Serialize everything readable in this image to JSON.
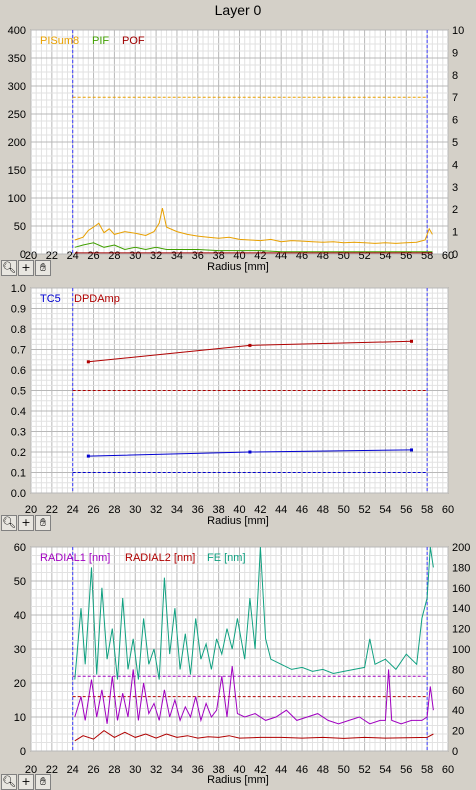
{
  "window_title": "Layer 0",
  "toolbar": {
    "zoom_icon": "magnifier-icon",
    "cross_icon": "crosshair-icon",
    "pan_icon": "hand-icon"
  },
  "chart_data": [
    {
      "type": "line",
      "xlabel": "Radius [mm]",
      "xlim": [
        20,
        60
      ],
      "x_ticks": [
        20,
        22,
        24,
        26,
        28,
        30,
        32,
        34,
        36,
        38,
        40,
        42,
        44,
        46,
        48,
        50,
        52,
        54,
        56,
        58,
        60
      ],
      "ylim": [
        0,
        400
      ],
      "y_ticks": [
        0,
        50,
        100,
        150,
        200,
        250,
        300,
        350,
        400
      ],
      "y2lim": [
        0,
        10
      ],
      "y2_ticks": [
        0,
        1,
        2,
        3,
        4,
        5,
        6,
        7,
        8,
        9,
        10
      ],
      "grid": true,
      "legend_position": "top-left",
      "markers_x": [
        24,
        58
      ],
      "series": [
        {
          "name": "PISum8",
          "color": "#e8a000",
          "axis": "left",
          "x": [
            24.2,
            25,
            25.5,
            26,
            26.5,
            27,
            27.5,
            28,
            29,
            30,
            31,
            31.8,
            32.3,
            32.6,
            33,
            34,
            35,
            36,
            37,
            38,
            39,
            40,
            41,
            42,
            43,
            44,
            45,
            46,
            47,
            48,
            49,
            50,
            51,
            52,
            53,
            54,
            55,
            56,
            57,
            57.8,
            58.2,
            58.5
          ],
          "values": [
            25,
            30,
            42,
            48,
            55,
            38,
            45,
            35,
            40,
            37,
            33,
            40,
            55,
            82,
            48,
            40,
            35,
            32,
            30,
            28,
            30,
            26,
            25,
            24,
            26,
            22,
            24,
            23,
            22,
            21,
            22,
            20,
            21,
            20,
            19,
            20,
            19,
            20,
            21,
            25,
            45,
            35
          ]
        },
        {
          "name": "PIF",
          "color": "#40a000",
          "axis": "right",
          "x": [
            24.2,
            25,
            26,
            27,
            28,
            29,
            30,
            31,
            32,
            33,
            34,
            36,
            38,
            40,
            42,
            44,
            46,
            48,
            50,
            52,
            54,
            56,
            58.5
          ],
          "values": [
            0.3,
            0.4,
            0.5,
            0.3,
            0.4,
            0.2,
            0.3,
            0.2,
            0.3,
            0.2,
            0.2,
            0.2,
            0.15,
            0.15,
            0.15,
            0.1,
            0.1,
            0.1,
            0.1,
            0.1,
            0.1,
            0.1,
            0.1
          ]
        },
        {
          "name": "POF",
          "color": "#a00000",
          "axis": "right",
          "x": [
            24.2,
            58.5
          ],
          "values": [
            0.05,
            0.05
          ]
        }
      ],
      "threshold_lines": [
        {
          "value": 7,
          "axis": "right",
          "color": "#e8a000"
        }
      ]
    },
    {
      "type": "line",
      "xlabel": "Radius [mm]",
      "xlim": [
        20,
        60
      ],
      "x_ticks": [
        20,
        22,
        24,
        26,
        28,
        30,
        32,
        34,
        36,
        38,
        40,
        42,
        44,
        46,
        48,
        50,
        52,
        54,
        56,
        58,
        60
      ],
      "ylim": [
        0,
        1
      ],
      "y_ticks": [
        0,
        0.1,
        0.2,
        0.3,
        0.4,
        0.5,
        0.6,
        0.7,
        0.8,
        0.9,
        1.0
      ],
      "grid": true,
      "legend_position": "top-left",
      "markers_x": [
        24,
        58
      ],
      "series": [
        {
          "name": "TC5",
          "color": "#0000d0",
          "axis": "left",
          "x": [
            25.5,
            41,
            56.5
          ],
          "values": [
            0.18,
            0.2,
            0.21
          ]
        },
        {
          "name": "DPDAmp",
          "color": "#b00000",
          "axis": "left",
          "x": [
            25.5,
            41,
            56.5
          ],
          "values": [
            0.64,
            0.72,
            0.74
          ]
        }
      ],
      "threshold_lines": [
        {
          "value": 0.1,
          "axis": "left",
          "color": "#0000d0"
        },
        {
          "value": 0.5,
          "axis": "left",
          "color": "#b00000"
        }
      ]
    },
    {
      "type": "line",
      "xlabel": "Radius [mm]",
      "xlim": [
        20,
        60
      ],
      "x_ticks": [
        20,
        22,
        24,
        26,
        28,
        30,
        32,
        34,
        36,
        38,
        40,
        42,
        44,
        46,
        48,
        50,
        52,
        54,
        56,
        58,
        60
      ],
      "ylim": [
        0,
        60
      ],
      "y_ticks": [
        0,
        10,
        20,
        30,
        40,
        50,
        60
      ],
      "y2lim": [
        0,
        200
      ],
      "y2_ticks": [
        0,
        20,
        40,
        60,
        80,
        100,
        120,
        140,
        160,
        180,
        200
      ],
      "grid": true,
      "legend_position": "top-left",
      "markers_x": [
        24,
        58
      ],
      "series": [
        {
          "name": "RADIAL1 [nm]",
          "color": "#a000c0",
          "axis": "left",
          "x": [
            24.2,
            24.8,
            25.2,
            25.8,
            26.3,
            26.8,
            27.3,
            27.8,
            28.3,
            28.8,
            29.3,
            29.8,
            30.3,
            30.8,
            31.3,
            31.8,
            32.3,
            32.8,
            33.3,
            33.8,
            34.3,
            34.8,
            35.3,
            35.8,
            36.3,
            36.8,
            37.3,
            37.8,
            38.3,
            38.8,
            39.3,
            39.8,
            40.5,
            41.5,
            42.5,
            43.5,
            44.5,
            45.5,
            46.5,
            47.5,
            48.5,
            49.5,
            50.5,
            51.5,
            52.5,
            53.5,
            54,
            54.3,
            54.6,
            55.5,
            56.5,
            57.5,
            58,
            58.3,
            58.6
          ],
          "values": [
            10,
            16,
            9,
            21,
            10,
            18,
            8,
            22,
            9,
            17,
            10,
            24,
            9,
            20,
            11,
            14,
            9,
            18,
            10,
            15,
            9,
            13,
            10,
            16,
            9,
            14,
            10,
            12,
            22,
            10,
            25,
            11,
            10,
            11,
            9,
            10,
            12,
            9,
            10,
            11,
            9,
            8,
            9,
            10,
            8,
            9,
            9,
            24,
            9,
            8,
            9,
            9,
            10,
            19,
            12
          ]
        },
        {
          "name": "RADIAL2 [nm]",
          "color": "#b00000",
          "axis": "left",
          "x": [
            24.2,
            25,
            26,
            27,
            28,
            29,
            30,
            31,
            32,
            33,
            34,
            35,
            36,
            37,
            38,
            39,
            40,
            42,
            44,
            46,
            48,
            50,
            52,
            54,
            56,
            58,
            58.6
          ],
          "values": [
            3,
            4.5,
            3.5,
            6,
            4,
            5.5,
            4,
            5,
            3.8,
            5,
            4,
            4.5,
            3.8,
            4.2,
            4,
            4.5,
            3.8,
            4,
            4,
            3.8,
            4,
            3.7,
            4,
            3.8,
            3.9,
            4,
            5
          ]
        },
        {
          "name": "FE [nm]",
          "color": "#10a080",
          "axis": "right",
          "x": [
            24.2,
            24.8,
            25.2,
            25.8,
            26.3,
            26.8,
            27.3,
            27.8,
            28.3,
            28.8,
            29.3,
            29.8,
            30.3,
            30.8,
            31.3,
            31.8,
            32.3,
            32.8,
            33.3,
            33.8,
            34.3,
            34.8,
            35.3,
            35.8,
            36.3,
            36.8,
            37.3,
            37.8,
            38.3,
            38.8,
            39.3,
            39.8,
            40.5,
            41,
            41.5,
            42,
            42.5,
            43,
            44,
            45,
            46,
            47,
            48,
            49,
            50,
            51,
            52,
            52.5,
            53,
            54,
            55,
            56,
            57,
            57.5,
            58,
            58.3,
            58.6
          ],
          "values": [
            70,
            140,
            85,
            180,
            75,
            160,
            90,
            120,
            70,
            150,
            80,
            110,
            70,
            130,
            85,
            100,
            70,
            170,
            95,
            140,
            80,
            115,
            75,
            130,
            90,
            105,
            80,
            110,
            95,
            120,
            100,
            130,
            90,
            150,
            100,
            200,
            110,
            90,
            85,
            80,
            82,
            78,
            80,
            76,
            78,
            80,
            82,
            110,
            85,
            90,
            80,
            95,
            85,
            130,
            150,
            200,
            180
          ]
        }
      ],
      "threshold_lines": [
        {
          "value": 22,
          "axis": "left",
          "color": "#a000c0"
        },
        {
          "value": 16,
          "axis": "left",
          "color": "#b00000"
        }
      ]
    }
  ]
}
